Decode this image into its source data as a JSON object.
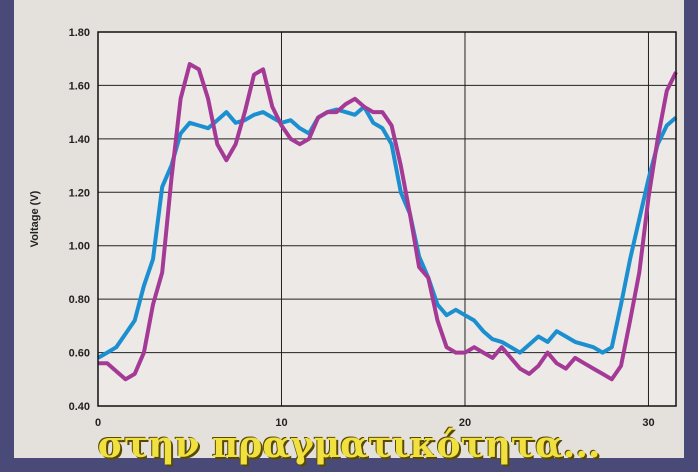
{
  "caption": "στην πραγματικότητα...",
  "chart_data": {
    "type": "line",
    "ylabel": "Voltage (V)",
    "xlabel": "",
    "xlim": [
      0,
      31.5
    ],
    "ylim": [
      0.4,
      1.8
    ],
    "x_ticks": [
      0,
      10,
      20,
      30
    ],
    "y_ticks": [
      0.4,
      0.6,
      0.8,
      1.0,
      1.2,
      1.4,
      1.6,
      1.8
    ],
    "y_tick_labels": [
      "0.40",
      "0.60",
      "0.80",
      "1.00",
      "1.20",
      "1.40",
      "1.60",
      "1.80"
    ],
    "grid": true,
    "series": [
      {
        "color": "#1b8fd0",
        "x": [
          0,
          0.5,
          1,
          1.5,
          2,
          2.5,
          3,
          3.5,
          4,
          4.5,
          5,
          5.5,
          6,
          6.5,
          7,
          7.5,
          8,
          8.5,
          9,
          9.5,
          10,
          10.5,
          11,
          11.5,
          12,
          12.5,
          13,
          13.5,
          14,
          14.5,
          15,
          15.5,
          16,
          16.5,
          17,
          17.5,
          18,
          18.5,
          19,
          19.5,
          20,
          20.5,
          21,
          21.5,
          22,
          22.5,
          23,
          23.5,
          24,
          24.5,
          25,
          25.5,
          26,
          26.5,
          27,
          27.5,
          28,
          28.5,
          29,
          29.5,
          30,
          30.5,
          31,
          31.5
        ],
        "values": [
          0.58,
          0.6,
          0.62,
          0.67,
          0.72,
          0.85,
          0.95,
          1.22,
          1.3,
          1.42,
          1.46,
          1.45,
          1.44,
          1.47,
          1.5,
          1.46,
          1.47,
          1.49,
          1.5,
          1.48,
          1.46,
          1.47,
          1.44,
          1.42,
          1.48,
          1.5,
          1.51,
          1.5,
          1.49,
          1.52,
          1.46,
          1.44,
          1.38,
          1.2,
          1.12,
          0.96,
          0.88,
          0.78,
          0.74,
          0.76,
          0.74,
          0.72,
          0.68,
          0.65,
          0.64,
          0.62,
          0.6,
          0.63,
          0.66,
          0.64,
          0.68,
          0.66,
          0.64,
          0.63,
          0.62,
          0.6,
          0.62,
          0.78,
          0.95,
          1.1,
          1.25,
          1.38,
          1.45,
          1.48
        ]
      },
      {
        "color": "#a43a96",
        "x": [
          0,
          0.5,
          1,
          1.5,
          2,
          2.5,
          3,
          3.5,
          4,
          4.5,
          5,
          5.5,
          6,
          6.5,
          7,
          7.5,
          8,
          8.5,
          9,
          9.5,
          10,
          10.5,
          11,
          11.5,
          12,
          12.5,
          13,
          13.5,
          14,
          14.5,
          15,
          15.5,
          16,
          16.5,
          17,
          17.5,
          18,
          18.5,
          19,
          19.5,
          20,
          20.5,
          21,
          21.5,
          22,
          22.5,
          23,
          23.5,
          24,
          24.5,
          25,
          25.5,
          26,
          26.5,
          27,
          27.5,
          28,
          28.5,
          29,
          29.5,
          30,
          30.5,
          31,
          31.5
        ],
        "values": [
          0.56,
          0.56,
          0.53,
          0.5,
          0.52,
          0.6,
          0.78,
          0.9,
          1.25,
          1.55,
          1.68,
          1.66,
          1.55,
          1.38,
          1.32,
          1.38,
          1.5,
          1.64,
          1.66,
          1.52,
          1.45,
          1.4,
          1.38,
          1.4,
          1.48,
          1.5,
          1.5,
          1.53,
          1.55,
          1.52,
          1.5,
          1.5,
          1.45,
          1.3,
          1.12,
          0.92,
          0.88,
          0.72,
          0.62,
          0.6,
          0.6,
          0.62,
          0.6,
          0.58,
          0.62,
          0.58,
          0.54,
          0.52,
          0.55,
          0.6,
          0.56,
          0.54,
          0.58,
          0.56,
          0.54,
          0.52,
          0.5,
          0.55,
          0.72,
          0.9,
          1.18,
          1.4,
          1.58,
          1.65
        ]
      }
    ]
  }
}
